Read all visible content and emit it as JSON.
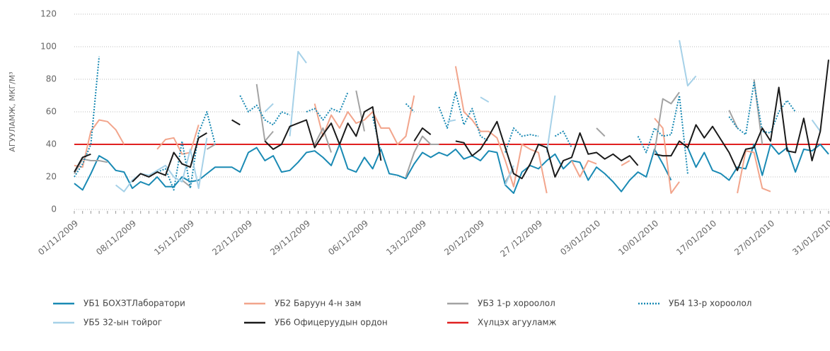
{
  "chart_data": {
    "type": "line",
    "ylabel": "АГУУЛАМЖ, МКГ/М³",
    "ylim": [
      0,
      120
    ],
    "yticks": [
      0,
      20,
      40,
      60,
      80,
      100,
      120
    ],
    "grid": true,
    "categories": [
      "01/11/2009",
      null,
      null,
      null,
      null,
      null,
      null,
      "08/11/2009",
      null,
      null,
      null,
      null,
      null,
      null,
      "15/11/2009",
      null,
      null,
      null,
      null,
      null,
      null,
      "22/11/2009",
      null,
      null,
      null,
      null,
      null,
      null,
      "29/11/2009",
      null,
      null,
      null,
      null,
      null,
      null,
      "06/11/2009",
      null,
      null,
      null,
      null,
      null,
      null,
      "13/12/2009",
      null,
      null,
      null,
      null,
      null,
      null,
      "20/12/2009",
      null,
      null,
      null,
      null,
      null,
      null,
      "27 /12/2009",
      null,
      null,
      null,
      null,
      null,
      null,
      "03/01/2010",
      null,
      null,
      null,
      null,
      null,
      null,
      "10/01/2010",
      null,
      null,
      null,
      null,
      null,
      null,
      "17/01/2010",
      null,
      null,
      null,
      null,
      null,
      null,
      "27/01/2010",
      null,
      null,
      null,
      null,
      null,
      null,
      "31/01/2010"
    ],
    "series": [
      {
        "name": "УБ1 БОХЗТЛаборатори",
        "color": "#1a8ab4",
        "dash": false,
        "values": [
          16,
          12,
          22,
          33,
          30,
          24,
          23,
          13,
          17,
          15,
          20,
          14,
          14,
          20,
          17,
          18,
          22,
          26,
          26,
          26,
          23,
          35,
          38,
          30,
          33,
          23,
          24,
          29,
          35,
          36,
          32,
          27,
          40,
          25,
          23,
          32,
          25,
          37,
          22,
          21,
          19,
          28,
          35,
          32,
          35,
          33,
          37,
          31,
          33,
          30,
          36,
          35,
          15,
          10,
          23,
          27,
          25,
          30,
          34,
          25,
          30,
          29,
          18,
          26,
          22,
          17,
          11,
          18,
          23,
          20,
          37,
          28,
          18,
          null,
          38,
          26,
          35,
          24,
          22,
          18,
          26,
          25,
          40,
          21,
          40,
          34,
          38,
          23,
          37,
          36,
          40,
          34
        ]
      },
      {
        "name": "УБ2 Баруун 4-н зам",
        "color": "#f2a58c",
        "dash": false,
        "values": [
          27,
          26,
          48,
          55,
          54,
          49,
          40,
          null,
          null,
          null,
          37,
          43,
          44,
          34,
          35,
          52,
          null,
          null,
          null,
          null,
          null,
          null,
          null,
          null,
          null,
          null,
          null,
          null,
          null,
          65,
          45,
          58,
          50,
          60,
          53,
          55,
          60,
          50,
          50,
          40,
          45,
          70,
          null,
          null,
          null,
          null,
          88,
          60,
          55,
          48,
          48,
          44,
          30,
          14,
          40,
          37,
          35,
          10,
          null,
          null,
          30,
          20,
          30,
          28,
          null,
          null,
          27,
          30,
          null,
          null,
          56,
          50,
          10,
          17,
          null,
          null,
          null,
          null,
          null,
          null,
          10,
          36,
          35,
          13,
          11,
          null,
          null,
          null,
          null,
          null,
          null,
          null
        ]
      },
      {
        "name": "УБ3 1-р хороолол",
        "color": "#a3a3a3",
        "dash": false,
        "values": [
          22,
          31,
          30,
          30,
          29,
          null,
          null,
          null,
          null,
          null,
          null,
          null,
          null,
          18,
          14,
          null,
          37,
          40,
          null,
          null,
          null,
          null,
          77,
          42,
          48,
          null,
          null,
          null,
          null,
          40,
          50,
          35,
          null,
          null,
          73,
          48,
          null,
          null,
          null,
          null,
          20,
          35,
          45,
          40,
          40,
          null,
          null,
          null,
          null,
          null,
          null,
          null,
          17,
          25,
          null,
          null,
          null,
          null,
          null,
          null,
          null,
          null,
          null,
          50,
          45,
          null,
          null,
          null,
          null,
          null,
          35,
          68,
          65,
          72,
          null,
          null,
          null,
          null,
          null,
          61,
          50,
          null,
          80,
          40,
          null,
          null,
          72,
          null,
          null,
          null,
          null,
          null
        ]
      },
      {
        "name": "УБ4 13-р хороолол",
        "color": "#1a8ab4",
        "dash": true,
        "values": [
          20,
          28,
          40,
          94,
          null,
          null,
          null,
          null,
          null,
          null,
          23,
          25,
          12,
          42,
          13,
          47,
          60,
          40,
          null,
          null,
          70,
          60,
          64,
          55,
          52,
          60,
          58,
          null,
          60,
          62,
          55,
          62,
          60,
          72,
          null,
          null,
          57,
          35,
          null,
          null,
          65,
          60,
          null,
          null,
          63,
          50,
          72,
          52,
          62,
          45,
          42,
          null,
          35,
          50,
          45,
          46,
          45,
          null,
          45,
          48,
          38,
          null,
          45,
          null,
          null,
          null,
          45,
          null,
          45,
          35,
          50,
          45,
          46,
          70,
          22,
          null,
          null,
          null,
          null,
          57,
          50,
          46,
          78,
          48,
          47,
          60,
          67,
          60,
          null,
          null,
          null,
          null
        ]
      },
      {
        "name": "УБ5 32-ын тойрог",
        "color": "#a6d1e8",
        "dash": false,
        "values": [
          26,
          null,
          null,
          null,
          null,
          15,
          11,
          18,
          22,
          21,
          24,
          27,
          20,
          17,
          37,
          13,
          44,
          null,
          null,
          null,
          null,
          null,
          null,
          60,
          65,
          null,
          45,
          97,
          90,
          null,
          null,
          null,
          null,
          null,
          73,
          null,
          null,
          86,
          null,
          20,
          null,
          null,
          null,
          null,
          null,
          54,
          55,
          null,
          null,
          69,
          66,
          null,
          15,
          27,
          null,
          null,
          null,
          35,
          70,
          null,
          45,
          null,
          null,
          null,
          45,
          null,
          null,
          null,
          null,
          null,
          58,
          null,
          null,
          104,
          76,
          82,
          null,
          null,
          null,
          null,
          null,
          null,
          null,
          null,
          null,
          null,
          null,
          null,
          null,
          55,
          48,
          null
        ]
      },
      {
        "name": "УБ6 Офицеруудын ордон",
        "color": "#1a1a1a",
        "dash": false,
        "values": [
          23,
          32,
          34,
          null,
          null,
          null,
          null,
          17,
          22,
          20,
          23,
          21,
          35,
          28,
          26,
          44,
          47,
          null,
          null,
          55,
          52,
          null,
          null,
          42,
          37,
          40,
          51,
          53,
          55,
          38,
          46,
          53,
          40,
          53,
          45,
          60,
          63,
          30,
          null,
          null,
          null,
          42,
          50,
          46,
          null,
          null,
          42,
          41,
          33,
          37,
          45,
          54,
          38,
          22,
          19,
          28,
          40,
          38,
          20,
          30,
          32,
          47,
          34,
          35,
          31,
          34,
          30,
          33,
          27,
          null,
          34,
          33,
          33,
          42,
          38,
          52,
          44,
          51,
          43,
          35,
          24,
          37,
          38,
          50,
          42,
          75,
          36,
          35,
          56,
          30,
          48,
          92
        ]
      }
    ],
    "threshold": {
      "name": "Хүлцэх агууламж",
      "value": 40,
      "color": "#e02020"
    }
  }
}
